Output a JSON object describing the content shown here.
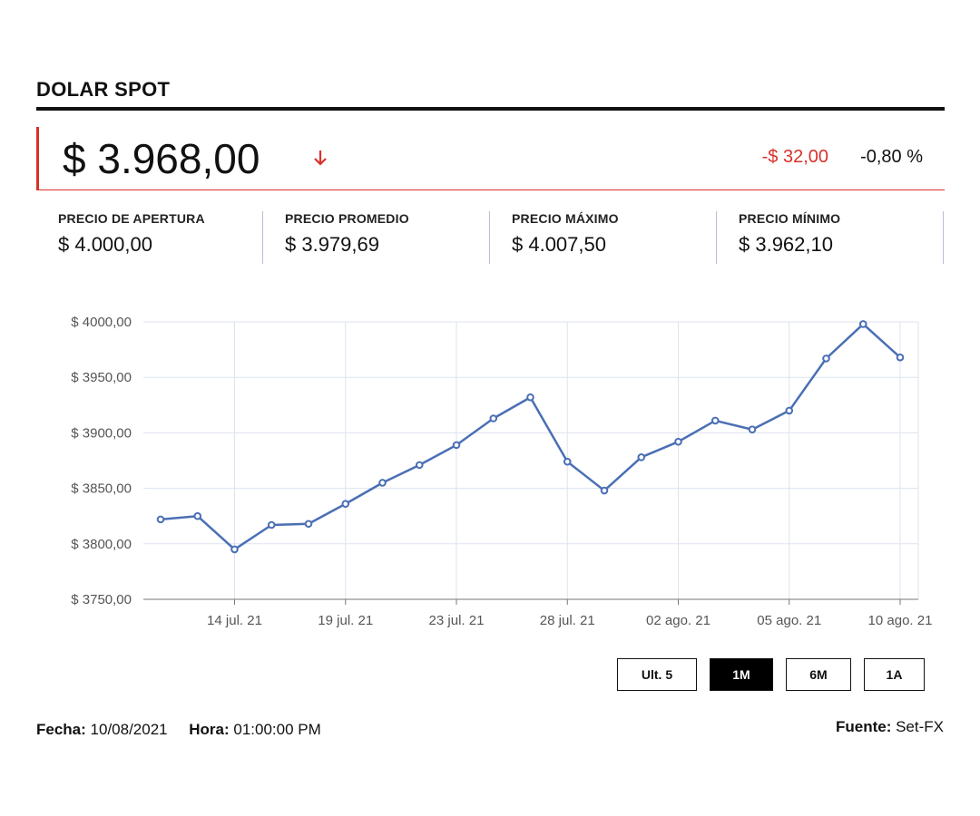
{
  "header": {
    "title": "DOLAR SPOT",
    "price": "$ 3.968,00",
    "change_abs": "-$ 32,00",
    "change_pct": "-0,80 %",
    "direction_icon": "arrow-down-icon",
    "down_color": "#d9302a"
  },
  "stats": [
    {
      "label": "PRECIO DE APERTURA",
      "value": "$ 4.000,00"
    },
    {
      "label": "PRECIO PROMEDIO",
      "value": "$ 3.979,69"
    },
    {
      "label": "PRECIO MÁXIMO",
      "value": "$ 4.007,50"
    },
    {
      "label": "PRECIO MÍNIMO",
      "value": "$ 3.962,10"
    }
  ],
  "chart_data": {
    "type": "line",
    "title": "",
    "xlabel": "",
    "ylabel": "",
    "ylim": [
      3750,
      4000
    ],
    "y_ticks": [
      3750,
      3800,
      3850,
      3900,
      3950,
      4000
    ],
    "y_tick_labels": [
      "$ 3750,00",
      "$ 3800,00",
      "$ 3850,00",
      "$ 3900,00",
      "$ 3950,00",
      "$ 4000,00"
    ],
    "x_tick_labels": [
      "14 jul. 21",
      "19 jul. 21",
      "23 jul. 21",
      "28 jul. 21",
      "02 ago. 21",
      "05 ago. 21",
      "10 ago. 21"
    ],
    "x_tick_index": [
      2,
      5,
      8,
      11,
      14,
      17,
      20
    ],
    "grid": true,
    "line_color": "#4a6fb5",
    "series": [
      {
        "values": [
          3822,
          3825,
          3795,
          3817,
          3818,
          3836,
          3855,
          3871,
          3889,
          3913,
          3932,
          3874,
          3848,
          3878,
          3892,
          3911,
          3903,
          3920,
          3967,
          3998,
          3968
        ]
      }
    ]
  },
  "range_buttons": [
    {
      "label": "Ult. 5",
      "active": false
    },
    {
      "label": "1M",
      "active": true
    },
    {
      "label": "6M",
      "active": false
    },
    {
      "label": "1A",
      "active": false
    }
  ],
  "footer": {
    "fecha_label": "Fecha:",
    "fecha_value": "10/08/2021",
    "hora_label": "Hora:",
    "hora_value": "01:00:00 PM",
    "fuente_label": "Fuente:",
    "fuente_value": "Set-FX"
  }
}
